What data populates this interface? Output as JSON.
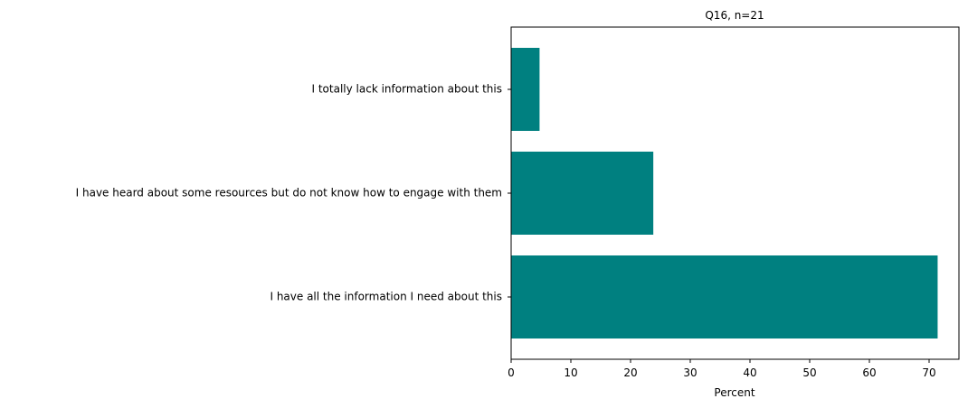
{
  "chart_data": {
    "type": "bar",
    "orientation": "horizontal",
    "title": "Q16, n=21",
    "xlabel": "Percent",
    "ylabel": "",
    "categories": [
      "I totally lack information about this",
      "I have heard about some resources but do not know how to engage with them",
      "I have all the information I need about this"
    ],
    "values": [
      4.76,
      23.81,
      71.43
    ],
    "xlim": [
      0,
      75
    ],
    "xticks": [
      0,
      10,
      20,
      30,
      40,
      50,
      60,
      70
    ],
    "grid": false,
    "bar_color": "#008080"
  }
}
